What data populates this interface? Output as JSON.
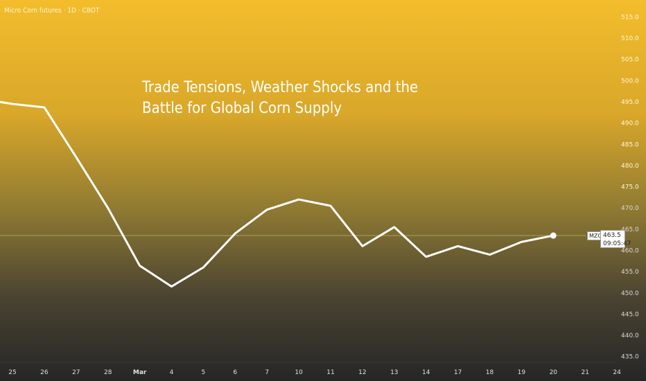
{
  "header": {
    "symbol_label": "Micro Corn futures · 1D · CBOT"
  },
  "annotation": {
    "headline": "Trade Tensions, Weather Shocks and the Battle for Global Corn Supply"
  },
  "price_tag": {
    "symbol": "MZCK2025",
    "price": "463.5",
    "countdown": "09:05:47"
  },
  "colors": {
    "line": "#ffffff",
    "axis_text_top": "#fff6d8",
    "axis_text_bottom": "#d8d8d8",
    "price_line": "#d9c27a"
  },
  "chart_data": {
    "type": "line",
    "title": "",
    "x_ticks": [
      "25",
      "26",
      "27",
      "28",
      "Mar",
      "4",
      "5",
      "6",
      "7",
      "10",
      "11",
      "12",
      "13",
      "14",
      "17",
      "18",
      "19",
      "20",
      "21",
      "24"
    ],
    "y_ticks": [
      435.0,
      440.0,
      445.0,
      450.0,
      455.0,
      460.0,
      465.0,
      470.0,
      475.0,
      480.0,
      485.0,
      490.0,
      495.0,
      500.0,
      505.0,
      510.0,
      515.0
    ],
    "ylim": [
      432.5,
      518.5
    ],
    "grid": false,
    "series": [
      {
        "x": [
          "24",
          "25",
          "26",
          "27",
          "28",
          "Mar",
          "4",
          "5",
          "6",
          "7",
          "10",
          "11",
          "12",
          "13",
          "14",
          "17",
          "18",
          "19",
          "20"
        ],
        "values": [
          495.7,
          494.5,
          493.7,
          482.0,
          470.0,
          456.4,
          451.5,
          456.0,
          464.0,
          469.6,
          472.0,
          470.5,
          461.0,
          465.5,
          458.5,
          461.0,
          459.0,
          462.0,
          463.5
        ]
      }
    ],
    "last_value": 463.5
  }
}
